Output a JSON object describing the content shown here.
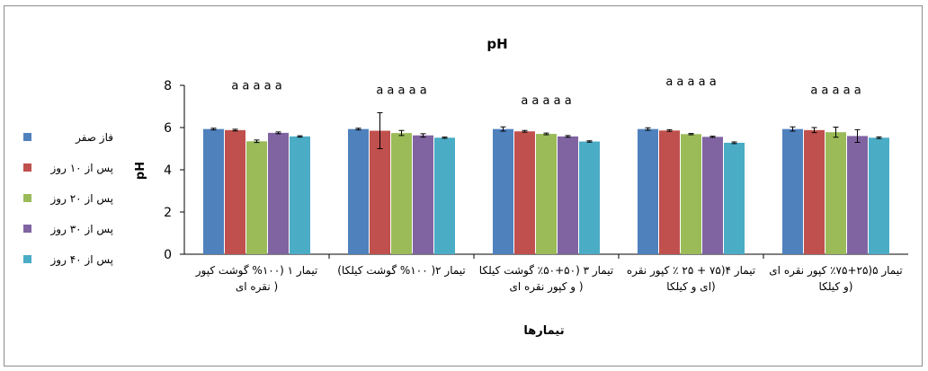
{
  "chart_data": {
    "type": "bar",
    "title": "pH",
    "ylabel": "pH",
    "xlabel": "تیمارها",
    "ylim": [
      0,
      8
    ],
    "yticks": [
      0,
      2,
      4,
      6,
      8
    ],
    "grid": false,
    "legend_position": "left",
    "categories": [
      [
        "تیمار ۱ (۱۰۰% گوشت کپور",
        "نقره ای )"
      ],
      [
        "تیمار ۲( ۱۰۰% گوشت کیلکا)"
      ],
      [
        "تیمار ۳ (۵۰+۵۰٪ گوشت کیلکا",
        "و کپور نقره ای )"
      ],
      [
        "تیمار ۴(۷۵ + ۲۵ ٪ کپور نقره",
        "ای و کیلکا)"
      ],
      [
        "تیمار ۵(۲۵+۷۵٪ کپور نقره ای",
        "و کیلکا)"
      ]
    ],
    "series": [
      {
        "name": "فاز صفر",
        "color": "#4f81bd",
        "values": [
          5.93,
          5.93,
          5.93,
          5.93,
          5.93
        ],
        "errors": [
          0.04,
          0.04,
          0.1,
          0.06,
          0.1
        ]
      },
      {
        "name": "پس از ۱۰ روز",
        "color": "#c0504d",
        "values": [
          5.88,
          5.85,
          5.82,
          5.86,
          5.88
        ],
        "errors": [
          0.04,
          0.85,
          0.04,
          0.04,
          0.12
        ]
      },
      {
        "name": "پس از ۲۰ روز",
        "color": "#9bbb59",
        "values": [
          5.35,
          5.74,
          5.7,
          5.69,
          5.78
        ],
        "errors": [
          0.06,
          0.12,
          0.04,
          0.03,
          0.24
        ]
      },
      {
        "name": "پس از ۳۰ روز",
        "color": "#8064a2",
        "values": [
          5.75,
          5.63,
          5.58,
          5.56,
          5.6
        ],
        "errors": [
          0.04,
          0.08,
          0.04,
          0.03,
          0.3
        ]
      },
      {
        "name": "پس از ۴۰ روز",
        "color": "#4bacc6",
        "values": [
          5.58,
          5.52,
          5.34,
          5.28,
          5.52
        ],
        "errors": [
          0.03,
          0.03,
          0.03,
          0.04,
          0.04
        ]
      }
    ],
    "annotations": [
      {
        "category": 0,
        "text": "a a a a a",
        "y": 7.8
      },
      {
        "category": 1,
        "text": "a a a a a",
        "y": 7.6
      },
      {
        "category": 2,
        "text": "a a a a a",
        "y": 7.1
      },
      {
        "category": 3,
        "text": "a a a a a",
        "y": 8.0
      },
      {
        "category": 4,
        "text": "a a a a a",
        "y": 7.6
      }
    ]
  }
}
